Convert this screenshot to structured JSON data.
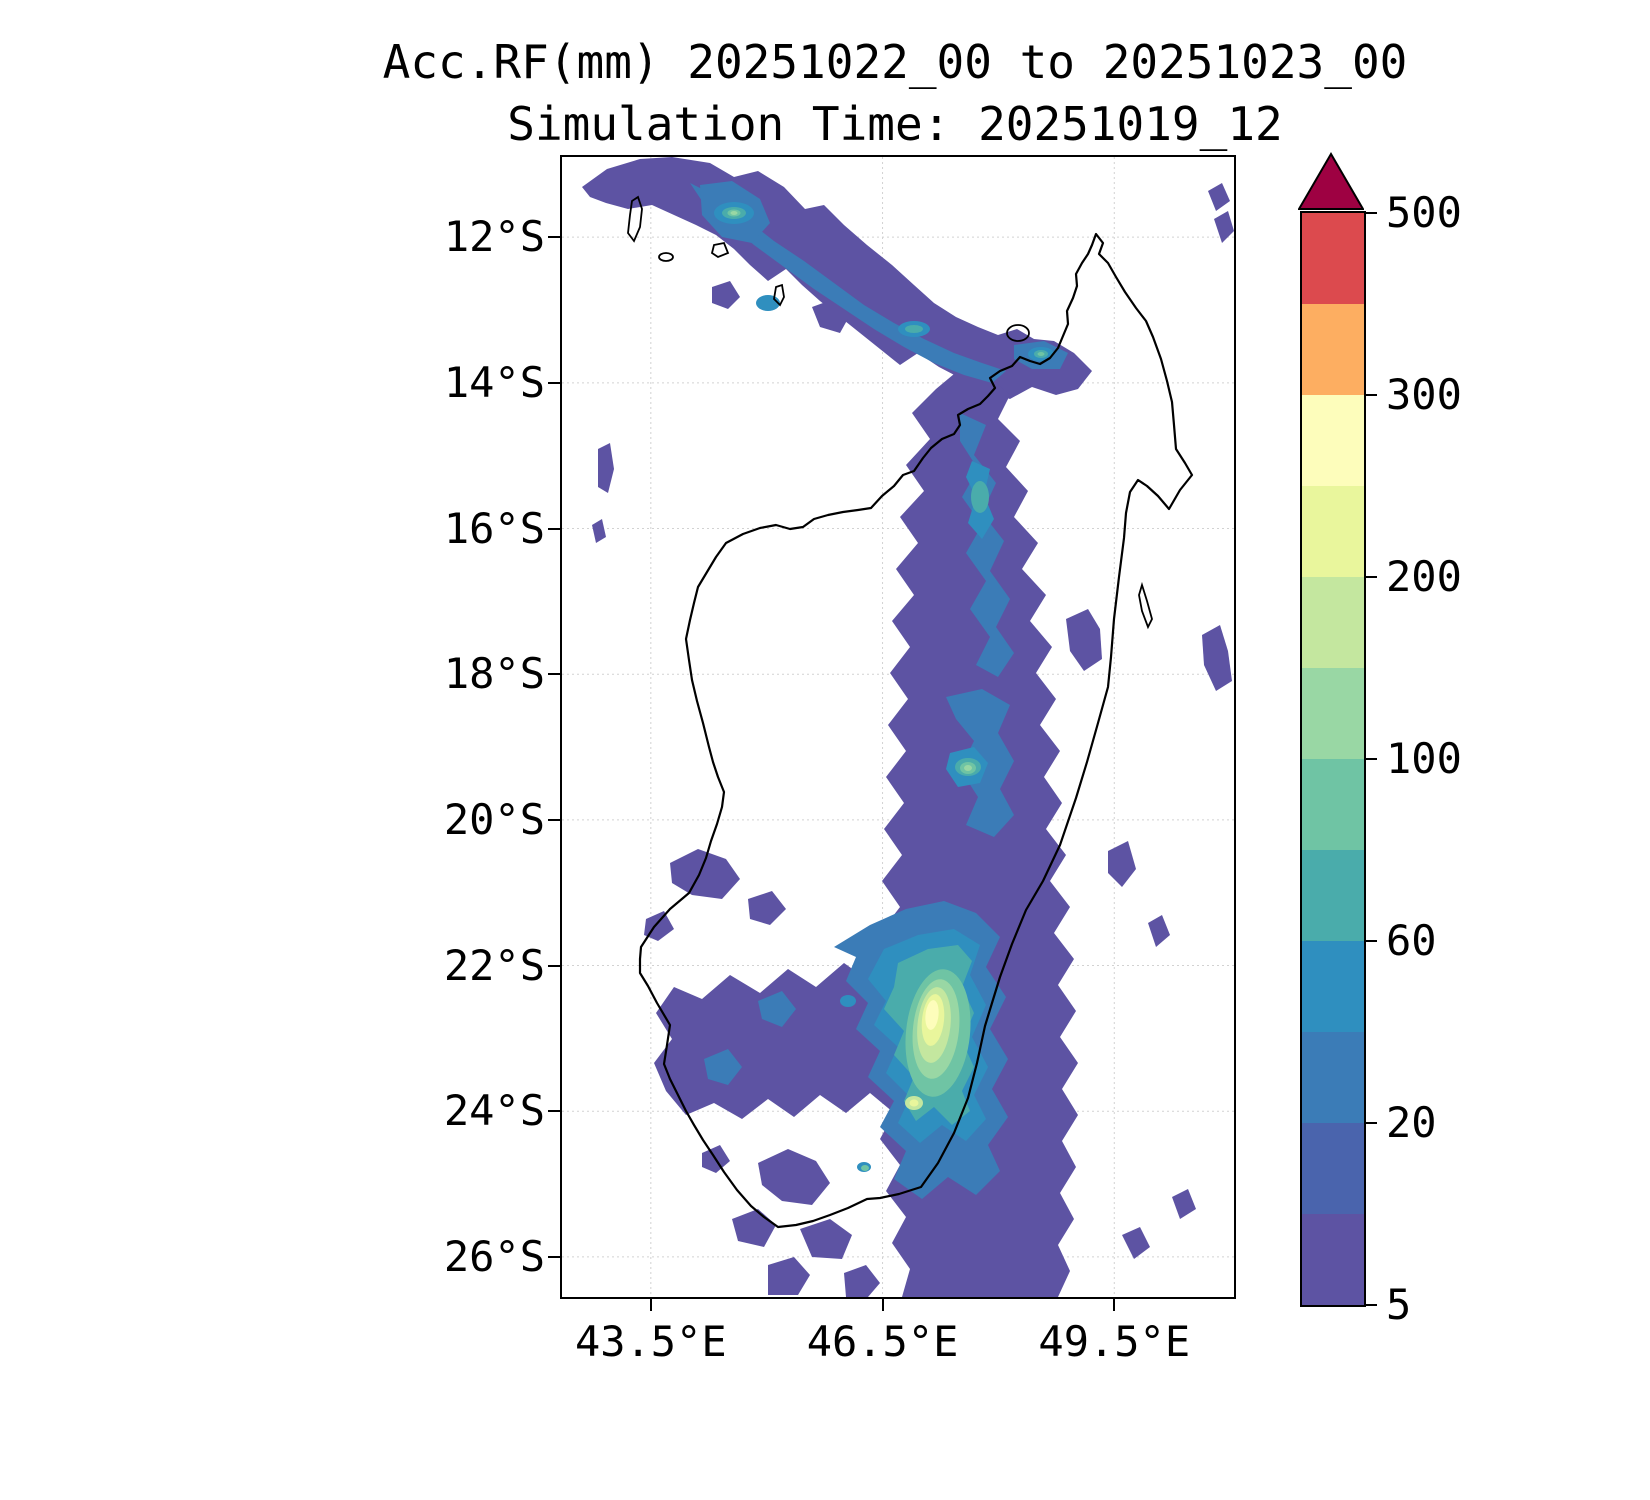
{
  "title": {
    "line1": "Acc.RF(mm) 20251022_00 to 20251023_00",
    "line2": "Simulation Time: 20251019_12"
  },
  "axes": {
    "x_tick_labels": [
      "43.5°E",
      "46.5°E",
      "49.5°E"
    ],
    "x_tick_values": [
      43.5,
      46.5,
      49.5
    ],
    "y_tick_labels": [
      "12°S",
      "14°S",
      "16°S",
      "18°S",
      "20°S",
      "22°S",
      "24°S",
      "26°S"
    ],
    "y_tick_values": [
      12,
      14,
      16,
      18,
      20,
      22,
      24,
      26
    ]
  },
  "colorbar": {
    "tick_labels": [
      "500",
      "300",
      "200",
      "100",
      "60",
      "20",
      "5"
    ]
  },
  "chart_data": {
    "type": "heatmap",
    "title": "Acc.RF(mm) 20251022_00 to 20251023_00",
    "subtitle": "Simulation Time: 20251019_12",
    "variable": "accumulated rainfall",
    "units": "mm",
    "accumulation_start": "20251022_00",
    "accumulation_end": "20251023_00",
    "simulation_time": "20251019_12",
    "region": "Madagascar",
    "geo": {
      "lon_range": [
        42.35,
        51.05
      ],
      "lat_range": [
        10.9,
        26.55
      ]
    },
    "levels_mm": [
      5,
      10,
      20,
      40,
      60,
      80,
      100,
      150,
      200,
      250,
      300,
      400,
      500
    ],
    "labeled_levels_mm": [
      5,
      20,
      60,
      100,
      200,
      300,
      500
    ],
    "palette": [
      "#5d53a3",
      "#4a64ad",
      "#3b7cb7",
      "#2f8fbf",
      "#4aacab",
      "#6fc4a4",
      "#99d7a4",
      "#c4e79f",
      "#e9f69c",
      "#fdfdbb",
      "#fdae61",
      "#dc4a4e"
    ],
    "over_color": "#9e0142",
    "grid": true,
    "legend_position": "right vertical colorbar with pointed over-range triangle",
    "features": [
      {
        "area": "northwest diagonal band from Comoros islands toward Sambava coast",
        "lat_s": "11.2-14.2",
        "lon_e": "42.7-49.1",
        "peak_mm": "100-150 in small cores near 43.6E,11.7S and 46.9E,13.3S"
      },
      {
        "area": "northeast coastal cluster near Sambava",
        "lat_s": "13.4-14.0",
        "lon_e": "48.4-49.3",
        "peak_mm": "60-100"
      },
      {
        "area": "eastern interior band along escarpment",
        "lat_s": "14-21",
        "lon_e": "46.3-49.0",
        "peak_mm": "20-60 with local 150-200 near 47.6E,19.3S"
      },
      {
        "area": "large south-central maximum",
        "lat_s": "21.5-24.5",
        "lon_e": "45.5-48.5",
        "peak_mm": "250-300 core near 47.1E,22.9S"
      },
      {
        "area": "scattered cells over southwest and far south",
        "lat_s": "21-26.5",
        "lon_e": "43.5-47.5",
        "peak_mm": "5-60"
      }
    ]
  }
}
